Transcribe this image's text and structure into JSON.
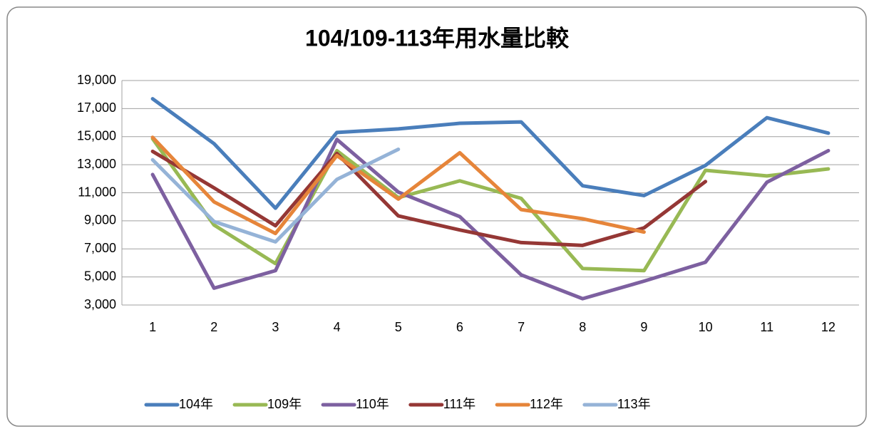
{
  "chart_data": {
    "type": "line",
    "title": "104/109-113年用水量比較",
    "categories": [
      "1",
      "2",
      "3",
      "4",
      "5",
      "6",
      "7",
      "8",
      "9",
      "10",
      "11",
      "12"
    ],
    "ylim": [
      3000,
      19000
    ],
    "yticks": [
      {
        "value": 3000,
        "label": "3,000"
      },
      {
        "value": 5000,
        "label": "5,000"
      },
      {
        "value": 7000,
        "label": "7,000"
      },
      {
        "value": 9000,
        "label": "9,000"
      },
      {
        "value": 11000,
        "label": "11,000"
      },
      {
        "value": 13000,
        "label": "13,000"
      },
      {
        "value": 15000,
        "label": "15,000"
      },
      {
        "value": 17000,
        "label": "17,000"
      },
      {
        "value": 19000,
        "label": "19,000"
      }
    ],
    "grid": true,
    "legend": "bottom",
    "series": [
      {
        "name": "104年",
        "color": "#4a7ebb",
        "values": [
          17700,
          14500,
          9900,
          15300,
          15550,
          15950,
          16050,
          11500,
          10800,
          12950,
          16350,
          15250
        ]
      },
      {
        "name": "109年",
        "color": "#98b954",
        "values": [
          14850,
          8700,
          5950,
          14000,
          10650,
          11850,
          10600,
          5600,
          5450,
          12600,
          12200,
          12700
        ]
      },
      {
        "name": "110年",
        "color": "#7d60a0",
        "values": [
          12300,
          4200,
          5450,
          14800,
          11050,
          9300,
          5150,
          3450,
          4700,
          6050,
          11750,
          14000
        ]
      },
      {
        "name": "111年",
        "color": "#953735",
        "values": [
          13950,
          11350,
          8650,
          13800,
          9350,
          8350,
          7450,
          7250,
          8500,
          11800,
          null,
          null
        ]
      },
      {
        "name": "112年",
        "color": "#e6853a",
        "values": [
          14950,
          10350,
          8100,
          13650,
          10550,
          13850,
          9800,
          9150,
          8200,
          null,
          null,
          null
        ]
      },
      {
        "name": "113年",
        "color": "#95b3d7",
        "values": [
          13350,
          8950,
          7500,
          11950,
          14100,
          null,
          null,
          null,
          null,
          null,
          null,
          null
        ]
      }
    ]
  }
}
